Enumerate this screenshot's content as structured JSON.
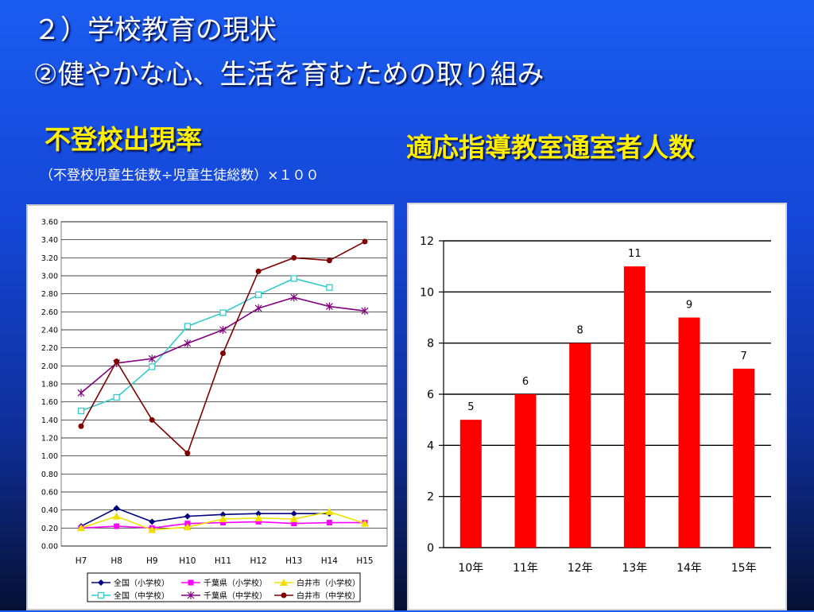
{
  "heading": {
    "line1": "２）学校教育の現状",
    "line2": "②健やかな心、生活を育むための取り組み"
  },
  "left": {
    "title": "不登校出現率",
    "subtitle": "（不登校児童生徒数÷児童生徒総数）×１００"
  },
  "right": {
    "title": "適応指導教室通室者人数"
  },
  "colors": {
    "background": "#1a5cf0",
    "title_yellow": "#ffee00",
    "bar_red": "#ff0000"
  },
  "chart_data": [
    {
      "type": "line",
      "categories": [
        "H7",
        "H8",
        "H9",
        "H10",
        "H11",
        "H12",
        "H13",
        "H14",
        "H15"
      ],
      "ylim": [
        0,
        3.6
      ],
      "yticks": [
        "0.00",
        "0.20",
        "0.40",
        "0.60",
        "0.80",
        "1.00",
        "1.20",
        "1.40",
        "1.60",
        "1.80",
        "2.00",
        "2.20",
        "2.40",
        "2.60",
        "2.80",
        "3.00",
        "3.20",
        "3.40",
        "3.60"
      ],
      "grid": true,
      "legend_position": "bottom",
      "series": [
        {
          "name": "全国（小学校）",
          "color": "#000080",
          "marker": "diamond",
          "values": [
            0.22,
            0.42,
            0.27,
            0.33,
            0.35,
            0.36,
            0.36,
            0.36,
            null
          ]
        },
        {
          "name": "千葉県（小学校）",
          "color": "#ff00ff",
          "marker": "square",
          "values": [
            0.2,
            0.22,
            0.2,
            0.25,
            0.26,
            0.27,
            0.25,
            0.26,
            0.26
          ]
        },
        {
          "name": "白井市（小学校）",
          "color": "#f0e000",
          "marker": "triangle",
          "values": [
            0.2,
            0.33,
            0.18,
            0.21,
            0.3,
            0.31,
            0.3,
            0.38,
            0.25
          ]
        },
        {
          "name": "全国（中学校）",
          "color": "#33cccc",
          "marker": "open-square",
          "values": [
            1.5,
            1.65,
            1.99,
            2.44,
            2.59,
            2.79,
            2.97,
            2.87,
            null
          ]
        },
        {
          "name": "千葉県（中学校）",
          "color": "#800080",
          "marker": "star",
          "values": [
            1.7,
            2.03,
            2.08,
            2.25,
            2.4,
            2.64,
            2.76,
            2.66,
            2.61
          ]
        },
        {
          "name": "白井市（中学校）",
          "color": "#800000",
          "marker": "circle",
          "values": [
            1.33,
            2.05,
            1.4,
            1.03,
            2.14,
            3.05,
            3.2,
            3.17,
            3.38
          ]
        }
      ]
    },
    {
      "type": "bar",
      "categories": [
        "10年",
        "11年",
        "12年",
        "13年",
        "14年",
        "15年"
      ],
      "values": [
        5,
        6,
        8,
        11,
        9,
        7
      ],
      "ylim": [
        0,
        12
      ],
      "yticks": [
        "0",
        "2",
        "4",
        "6",
        "8",
        "10",
        "12"
      ],
      "grid": true,
      "color": "#ff0000"
    }
  ]
}
